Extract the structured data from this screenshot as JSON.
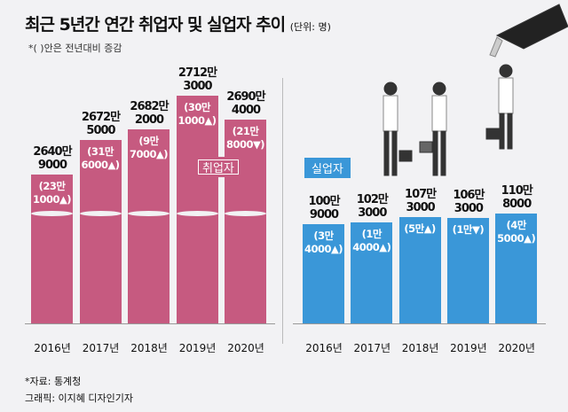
{
  "chart_data": [
    {
      "type": "bar",
      "title": "최근 5년간 연간 취업자 및 실업자 추이",
      "unit": "(단위: 명)",
      "note": "*( )안은 전년대비 증감",
      "series_label": "취업자",
      "color": "#c65a80",
      "categories": [
        "2016년",
        "2017년",
        "2018년",
        "2019년",
        "2020년"
      ],
      "values": [
        26409000,
        26725000,
        26822000,
        27123000,
        26904000
      ],
      "labels": [
        [
          "2640만",
          "9000"
        ],
        [
          "2672만",
          "5000"
        ],
        [
          "2682만",
          "2000"
        ],
        [
          "2712만",
          "3000"
        ],
        [
          "2690만",
          "4000"
        ]
      ],
      "changes": [
        [
          "(23만",
          "1000▲)"
        ],
        [
          "(31만",
          "6000▲)"
        ],
        [
          "(9만",
          "7000▲)"
        ],
        [
          "(30만",
          "1000▲)"
        ],
        [
          "(21만",
          "8000▼)"
        ]
      ]
    },
    {
      "type": "bar",
      "series_label": "실업자",
      "color": "#3a97d8",
      "categories": [
        "2016년",
        "2017년",
        "2018년",
        "2019년",
        "2020년"
      ],
      "values": [
        1009000,
        1023000,
        1073000,
        1063000,
        1108000
      ],
      "labels": [
        [
          "100만",
          "9000"
        ],
        [
          "102만",
          "3000"
        ],
        [
          "107만",
          "3000"
        ],
        [
          "106만",
          "3000"
        ],
        [
          "110만",
          "8000"
        ]
      ],
      "changes": [
        [
          "(3만",
          "4000▲)"
        ],
        [
          "(1만",
          "4000▲)"
        ],
        [
          "(5만▲)",
          ""
        ],
        [
          "(1만▼)",
          ""
        ],
        [
          "(4만",
          "5000▲)"
        ]
      ]
    }
  ],
  "source": "*자료: 통계청",
  "credit": "그래픽: 이지혜 디자인기자"
}
